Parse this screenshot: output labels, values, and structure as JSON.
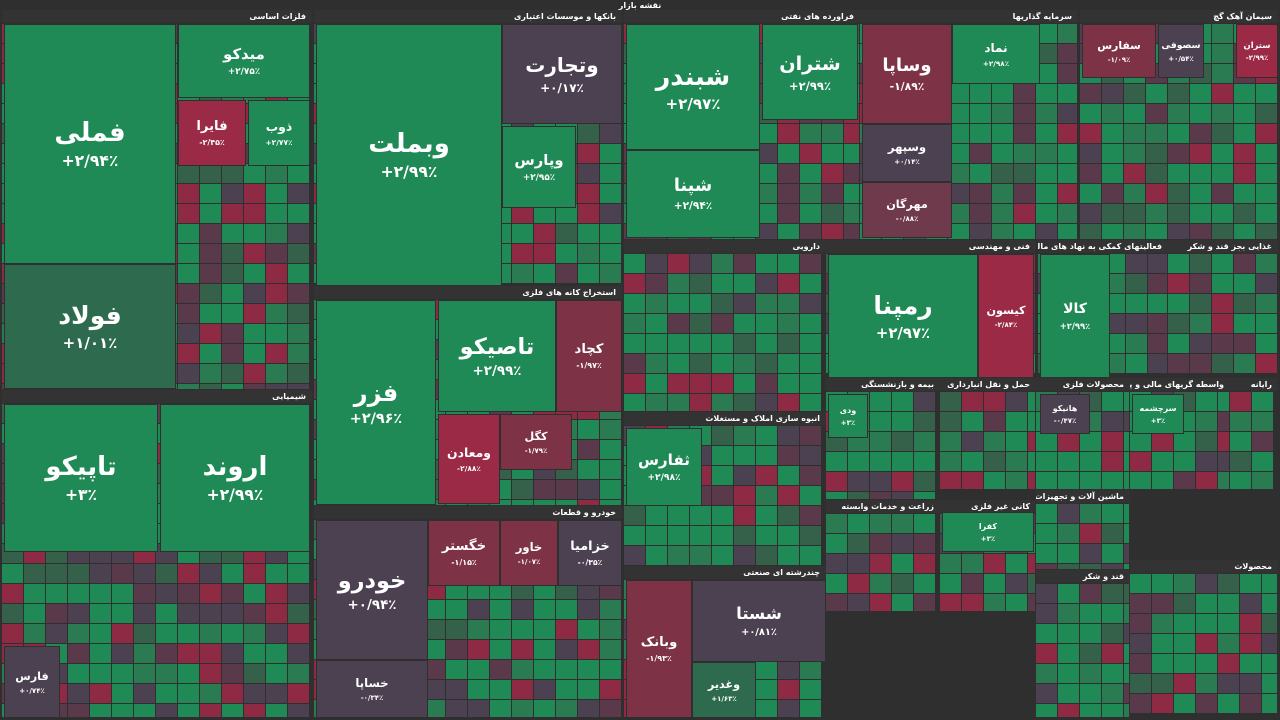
{
  "title": "نقشه بازار",
  "sectors": [
    {
      "title": "فلزات اساسی",
      "tiles": [
        {
          "name": "فملی",
          "change": "+۲/۹۴٪",
          "color": "#1f8a56"
        },
        {
          "name": "فولاد",
          "change": "+۱/۰۱٪",
          "color": "#2e6b4e"
        },
        {
          "name": "میدکو",
          "change": "+۲/۷۵٪",
          "color": "#1f8a56"
        },
        {
          "name": "فایرا",
          "change": "-۲/۴۵٪",
          "color": "#9a2a45"
        },
        {
          "name": "ذوب",
          "change": "+۲/۷۷٪",
          "color": "#1f8a56"
        }
      ]
    },
    {
      "title": "بانکها و موسسات اعتباری",
      "tiles": [
        {
          "name": "وبملت",
          "change": "+۲/۹۹٪",
          "color": "#1f8a56"
        },
        {
          "name": "وتجارت",
          "change": "+۰/۱۷٪",
          "color": "#4b4150"
        },
        {
          "name": "وپارس",
          "change": "+۲/۹۵٪",
          "color": "#1f8a56"
        }
      ]
    },
    {
      "title": "استخراج کانه های فلزی",
      "tiles": [
        {
          "name": "فزر",
          "change": "+۲/۹۶٪",
          "color": "#1f8a56"
        },
        {
          "name": "تاصیکو",
          "change": "+۲/۹۹٪",
          "color": "#1f8a56"
        },
        {
          "name": "کچاد",
          "change": "-۱/۹۷٪",
          "color": "#7e3246"
        },
        {
          "name": "ومعادن",
          "change": "-۲/۸۸٪",
          "color": "#9a2a45"
        },
        {
          "name": "کگل",
          "change": "-۱/۷۹٪",
          "color": "#7e3246"
        }
      ]
    },
    {
      "title": "خودرو و قطعات",
      "tiles": [
        {
          "name": "خودرو",
          "change": "+۰/۹۴٪",
          "color": "#4b4150"
        },
        {
          "name": "خگستر",
          "change": "-۱/۱۵٪",
          "color": "#7e3246"
        },
        {
          "name": "خاور",
          "change": "-۱/۰۷٪",
          "color": "#7e3246"
        },
        {
          "name": "خزامیا",
          "change": "-۰/۳۵٪",
          "color": "#4b4150"
        },
        {
          "name": "خساپا",
          "change": "-۰/۳۴٪",
          "color": "#4b4150"
        }
      ]
    },
    {
      "title": "فراورده های نفتی",
      "tiles": [
        {
          "name": "شبندر",
          "change": "+۲/۹۷٪",
          "color": "#1f8a56"
        },
        {
          "name": "شپنا",
          "change": "+۲/۹۴٪",
          "color": "#1f8a56"
        },
        {
          "name": "شتران",
          "change": "+۲/۹۹٪",
          "color": "#1f8a56"
        }
      ]
    },
    {
      "title": "سرمایه گذاریها",
      "tiles": [
        {
          "name": "وساپا",
          "change": "-۱/۸۹٪",
          "color": "#7e3246"
        },
        {
          "name": "وسپهر",
          "change": "+۰/۱۴٪",
          "color": "#4b4150"
        },
        {
          "name": "مهرگان",
          "change": "-۰/۸۸٪",
          "color": "#6e3a4c"
        },
        {
          "name": "نماد",
          "change": "+۲/۹۸٪",
          "color": "#1f8a56"
        }
      ]
    },
    {
      "title": "سیمان آهک گچ",
      "tiles": [
        {
          "name": "سفارس",
          "change": "-۱/۰۹٪",
          "color": "#7e3246"
        },
        {
          "name": "سصوفی",
          "change": "+۰/۵۴٪",
          "color": "#4b4150"
        },
        {
          "name": "ستران",
          "change": "-۲/۹۹٪",
          "color": "#9a2a45"
        }
      ]
    },
    {
      "title": "شیمیایی",
      "tiles": [
        {
          "name": "تاپیکو",
          "change": "+۳٪",
          "color": "#1f8a56"
        },
        {
          "name": "اروند",
          "change": "+۲/۹۹٪",
          "color": "#1f8a56"
        },
        {
          "name": "فارس",
          "change": "+۰/۷۴٪",
          "color": "#4b4150"
        }
      ]
    },
    {
      "title": "دارویی",
      "tiles": []
    },
    {
      "title": "انبوه سازی املاک و مستغلات",
      "tiles": [
        {
          "name": "ثفارس",
          "change": "+۲/۹۸٪",
          "color": "#1f8a56"
        }
      ]
    },
    {
      "title": "چندرشته ای صنعتی",
      "tiles": [
        {
          "name": "شستا",
          "change": "+۰/۸۱٪",
          "color": "#4b4150"
        },
        {
          "name": "وبانک",
          "change": "-۱/۹۳٪",
          "color": "#7e3246"
        },
        {
          "name": "وغدیر",
          "change": "+۱/۶۳٪",
          "color": "#2e6b4e"
        }
      ]
    },
    {
      "title": "فنی و مهندسی",
      "tiles": [
        {
          "name": "رمپنا",
          "change": "+۲/۹۷٪",
          "color": "#1f8a56"
        },
        {
          "name": "کیسون",
          "change": "-۲/۸۴٪",
          "color": "#9a2a45"
        }
      ]
    },
    {
      "title": "فعالیتهای کمکی به نهاد های مالی واسط",
      "tiles": [
        {
          "name": "کالا",
          "change": "+۲/۹۹٪",
          "color": "#1f8a56"
        }
      ]
    },
    {
      "title": "غذایی بجز قند و شکر",
      "tiles": []
    },
    {
      "title": "بیمه و بازنشستگی",
      "tiles": [
        {
          "name": "ودی",
          "change": "+۳٪",
          "color": "#1f8a56"
        }
      ]
    },
    {
      "title": "حمل و نقل انبارداری",
      "tiles": []
    },
    {
      "title": "محصولات فلزی",
      "tiles": [
        {
          "name": "هانیکو",
          "change": "-۰/۴۷٪",
          "color": "#4b4150"
        }
      ]
    },
    {
      "title": "واسطه گریهای مالی و پولی",
      "tiles": [
        {
          "name": "سرچشمه",
          "change": "+۳٪",
          "color": "#1f8a56"
        }
      ]
    },
    {
      "title": "رایانه",
      "tiles": []
    },
    {
      "title": "زراعت و خدمات وابسته",
      "tiles": []
    },
    {
      "title": "کانی غیر فلزی",
      "tiles": [
        {
          "name": "کفرا",
          "change": "+۳٪",
          "color": "#1f8a56"
        }
      ]
    },
    {
      "title": "ماشین آلات و تجهیزات",
      "tiles": []
    },
    {
      "title": "قند و شکر",
      "tiles": []
    },
    {
      "title": "محصولات",
      "tiles": []
    }
  ]
}
